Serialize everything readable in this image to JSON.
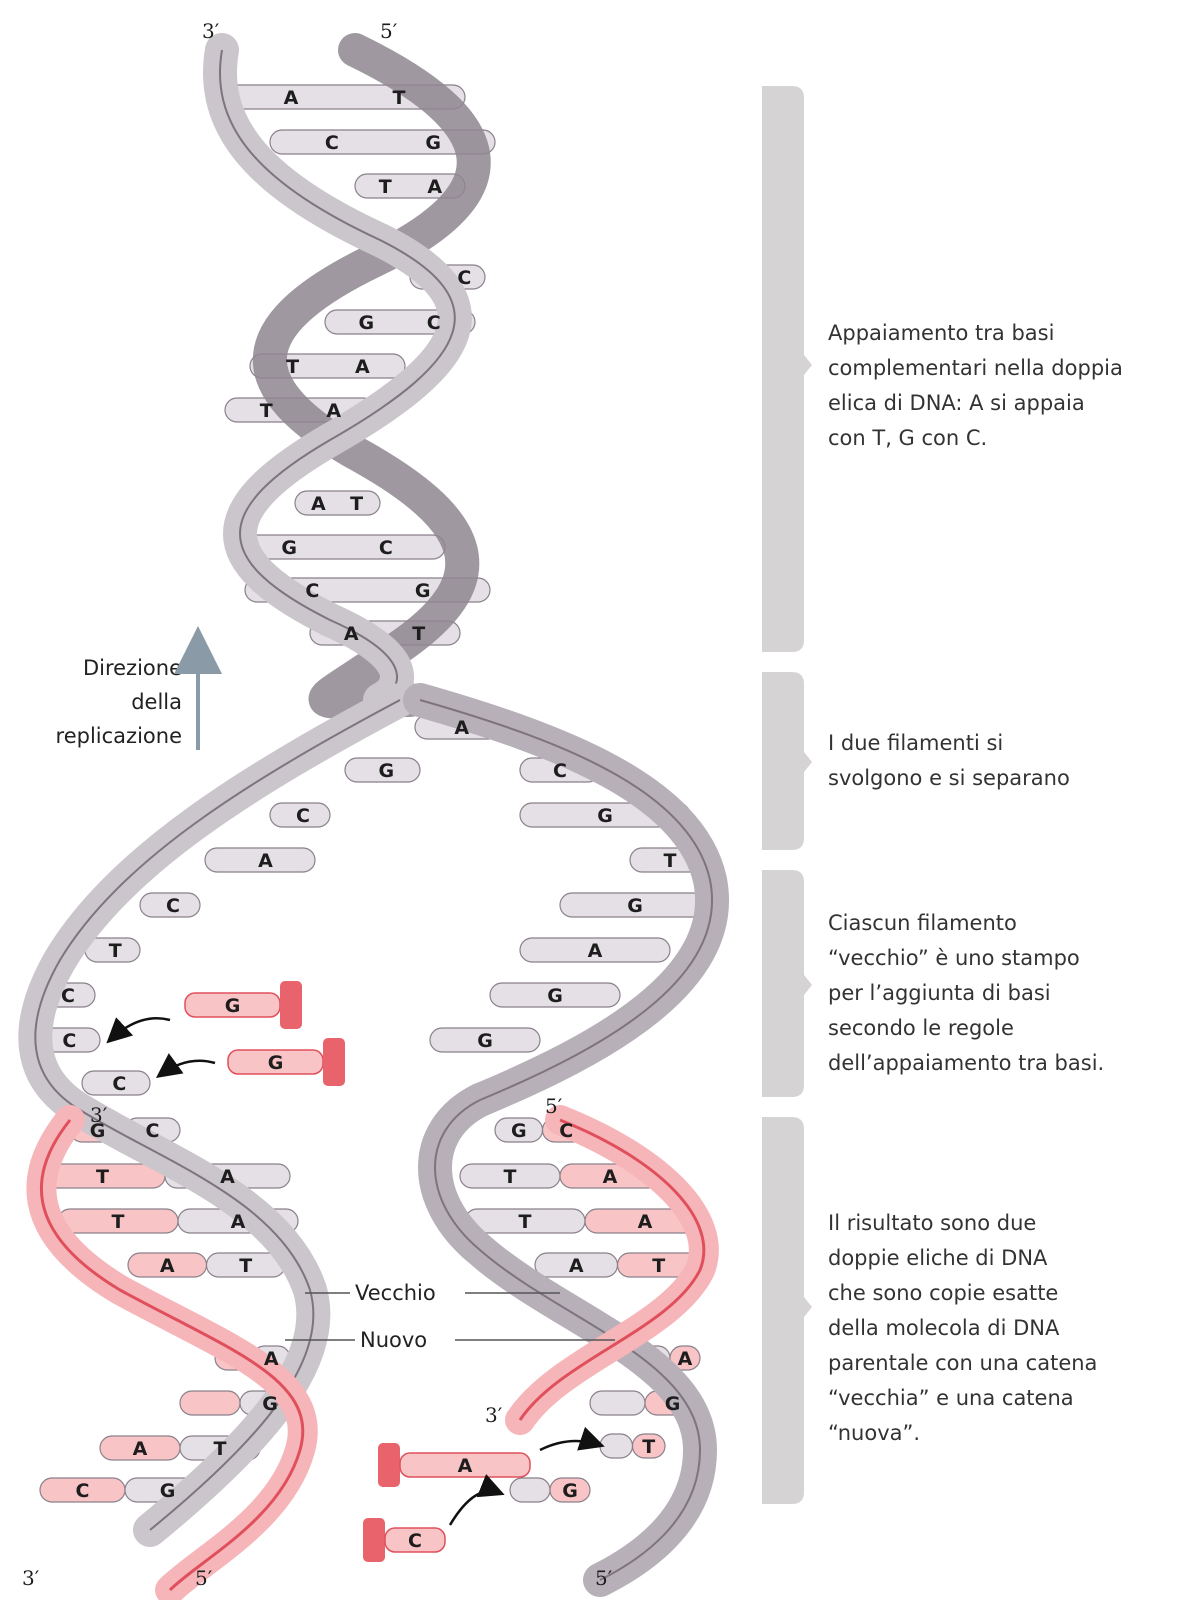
{
  "ends": {
    "top_left": "3′",
    "top_right": "5′",
    "bottom_left_3": "3′",
    "bottom_left_5": "5′",
    "bottom_right_5": "5′",
    "fork_left_new_3": "3′",
    "fork_right_new_5": "5′",
    "right_new_3": "3′"
  },
  "direction_label": [
    "Direzione",
    "della",
    "replicazione"
  ],
  "strand_labels": {
    "old": "Vecchio",
    "new": "Nuovo"
  },
  "bases": {
    "top_helix": [
      {
        "left": "A",
        "right": "T"
      },
      {
        "left": "C",
        "right": "G"
      },
      {
        "left": "T",
        "right": "A"
      },
      {
        "left": "",
        "right": "C"
      },
      {
        "left": "G",
        "right": "C"
      },
      {
        "left": "T",
        "right": "A"
      },
      {
        "left": "T",
        "right": "A"
      },
      {
        "left": "A",
        "right": "T"
      },
      {
        "left": "G",
        "right": "C"
      },
      {
        "left": "C",
        "right": "G"
      },
      {
        "left": "A",
        "right": "T"
      }
    ],
    "fork_left": [
      "A",
      "G",
      "C",
      "A",
      "C",
      "T",
      "C",
      "C",
      "C"
    ],
    "fork_right": [
      "C",
      "G",
      "T",
      "G",
      "A",
      "G",
      "G"
    ],
    "incoming_left": [
      "G",
      "G"
    ],
    "bottom_left_pairs": [
      {
        "left": "G",
        "right": "C"
      },
      {
        "left": "T",
        "right": "A"
      },
      {
        "left": "T",
        "right": "A"
      },
      {
        "left": "A",
        "right": "T"
      },
      {
        "left": "",
        "right": "A"
      },
      {
        "left": "",
        "right": "G"
      },
      {
        "left": "A",
        "right": "T"
      },
      {
        "left": "C",
        "right": "G"
      }
    ],
    "bottom_right_pairs": [
      {
        "left": "G",
        "right": "C"
      },
      {
        "left": "T",
        "right": "A"
      },
      {
        "left": "T",
        "right": "A"
      },
      {
        "left": "A",
        "right": "T"
      },
      {
        "left": "",
        "right": "A"
      },
      {
        "left": "",
        "right": "G"
      },
      {
        "left": "",
        "right": "T"
      },
      {
        "left": "",
        "right": "G"
      }
    ],
    "incoming_right": [
      "A",
      "C"
    ]
  },
  "annotations": [
    {
      "lines": [
        "Appaiamento tra basi",
        "complementari nella doppia",
        "elica di DNA: A si appaia",
        "con T, G con C."
      ]
    },
    {
      "lines": [
        "I due filamenti si",
        "svolgono e si separano"
      ]
    },
    {
      "lines": [
        "Ciascun filamento",
        "“vecchio” è uno stampo",
        "per l’aggiunta di basi",
        "secondo le regole",
        "dell’appaiamento tra basi."
      ]
    },
    {
      "lines": [
        "Il risultato sono due",
        "doppie eliche di DNA",
        "che sono copie esatte",
        "della molecola di DNA",
        "parentale con una catena",
        "“vecchia” e una catena",
        "“nuova”."
      ]
    }
  ],
  "colors": {
    "old_strand": "#cbc5cc",
    "old_strand_dark": "#8f8690",
    "new_strand": "#f6b6b9",
    "new_strand_dark": "#e0505c",
    "base_fill": "#e4e0e5",
    "new_base_fill": "#f8c4c6",
    "bracket": "#d6d3d4",
    "arrow_direction": "#8a9aa6"
  }
}
